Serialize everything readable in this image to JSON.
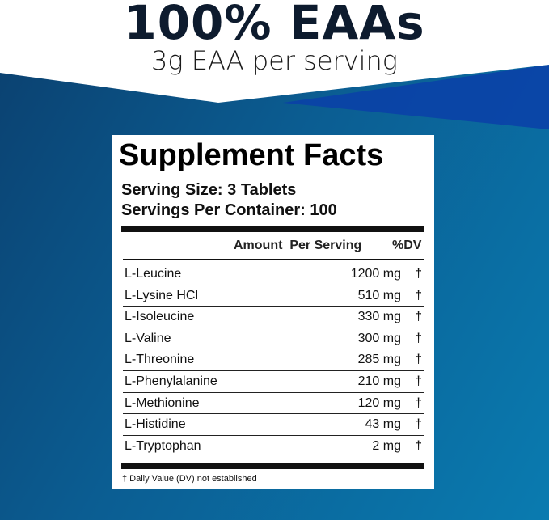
{
  "headline": "100% EAAs",
  "subheadline": "3g EAA per serving",
  "colors": {
    "background_dark": "#0b3f6e",
    "background_light": "#0a7bb0",
    "accent_blue": "#0a3fa8"
  },
  "label": {
    "title": "Supplement Facts",
    "serving_size": "Serving Size: 3 Tablets",
    "servings_per_container": "Servings Per Container: 100",
    "header_amount": "Amount  Per Serving",
    "header_dv": "%DV",
    "rows": [
      {
        "name": "L-Leucine",
        "amount": "1200 mg",
        "dv": "†"
      },
      {
        "name": "L-Lysine HCl",
        "amount": "510 mg",
        "dv": "†"
      },
      {
        "name": "L-Isoleucine",
        "amount": "330 mg",
        "dv": "†"
      },
      {
        "name": "L-Valine",
        "amount": "300 mg",
        "dv": "†"
      },
      {
        "name": "L-Threonine",
        "amount": "285 mg",
        "dv": "†"
      },
      {
        "name": "L-Phenylalanine",
        "amount": "210 mg",
        "dv": "†"
      },
      {
        "name": "L-Methionine",
        "amount": "120 mg",
        "dv": "†"
      },
      {
        "name": "L-Histidine",
        "amount": "43 mg",
        "dv": "†"
      },
      {
        "name": "L-Tryptophan",
        "amount": "2 mg",
        "dv": "†"
      }
    ],
    "footnote": "† Daily Value (DV) not established"
  }
}
